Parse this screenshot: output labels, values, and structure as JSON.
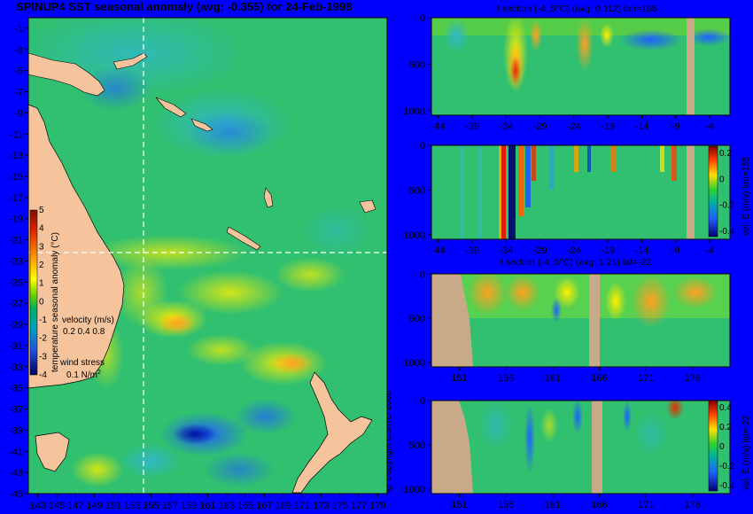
{
  "title": "SPINUP4 SST seasonal anomaly (avg: -0.355) for 24-Feb-1998",
  "copyright": "@ Copyright CSIRO 2006",
  "colors": {
    "background": "#0000ff",
    "land": "#f5c49c",
    "gray_land": "#c8aa88"
  },
  "chart_data": [
    {
      "type": "heatmap",
      "name": "sst-map",
      "title": "SPINUP4 SST seasonal anomaly (avg: -0.355) for 24-Feb-1998",
      "x_ticks": [
        143,
        145,
        147,
        149,
        151,
        153,
        155,
        157,
        159,
        161,
        163,
        165,
        167,
        169,
        171,
        173,
        175,
        177,
        179
      ],
      "y_ticks": [
        -1,
        -3,
        -5,
        -7,
        -9,
        -11,
        -13,
        -15,
        -17,
        -19,
        -21,
        -23,
        -25,
        -27,
        -29,
        -31,
        -33,
        -35,
        -37,
        -39,
        -41,
        -43,
        -45
      ],
      "xlim": [
        142,
        180
      ],
      "ylim": [
        -45,
        0
      ],
      "crosshair": {
        "lon": 155,
        "lat": -22
      },
      "colorbar": {
        "label": "temperature seasonal anomaly (°C)",
        "ticks": [
          5,
          4,
          3,
          2,
          1,
          0,
          -1,
          -2,
          -3,
          -4
        ],
        "range": [
          -4,
          5
        ]
      },
      "legend_velocity": {
        "title": "velocity (m/s)",
        "values": "0.2 0.4 0.8"
      },
      "legend_wind": {
        "title": "wind stress",
        "value": "0.1 N/m",
        "sup": "2"
      }
    },
    {
      "type": "heatmap",
      "name": "t-section-lon155",
      "title": "t section (-4..5°C) (avg: 0.112) lon=155",
      "x_ticks": [
        -44,
        -39,
        -34,
        -29,
        -24,
        -19,
        -14,
        -9,
        -4
      ],
      "y_ticks": [
        0,
        500,
        1000
      ],
      "xlim": [
        -45,
        -1
      ],
      "ylim": [
        1050,
        0
      ]
    },
    {
      "type": "heatmap",
      "name": "vel-section-lon155",
      "x_ticks": [
        -44,
        -39,
        -34,
        -29,
        -24,
        -19,
        -14,
        -9,
        -4
      ],
      "y_ticks": [
        0,
        500,
        1000
      ],
      "xlim": [
        -45,
        -1
      ],
      "ylim": [
        1050,
        0
      ],
      "colorbar": {
        "label": "vel. E (m/s) lon=155",
        "ticks": [
          0.2,
          0,
          -0.2,
          -0.4
        ]
      }
    },
    {
      "type": "heatmap",
      "name": "t-section-lat-22",
      "title": "t section (-4..5°C) (avg: 1.21) lat=-22",
      "x_ticks": [
        151,
        156,
        161,
        166,
        171,
        176
      ],
      "y_ticks": [
        0,
        500,
        1000
      ],
      "xlim": [
        148,
        180
      ],
      "ylim": [
        1050,
        0
      ]
    },
    {
      "type": "heatmap",
      "name": "vel-section-lat-22",
      "x_ticks": [
        151,
        156,
        161,
        166,
        171,
        176
      ],
      "y_ticks": [
        0,
        500,
        1000
      ],
      "xlim": [
        148,
        180
      ],
      "ylim": [
        1050,
        0
      ],
      "colorbar": {
        "label": "vel. E (m/s) lat=-22",
        "ticks": [
          0.4,
          0.2,
          0,
          -0.2,
          -0.4
        ]
      }
    }
  ]
}
